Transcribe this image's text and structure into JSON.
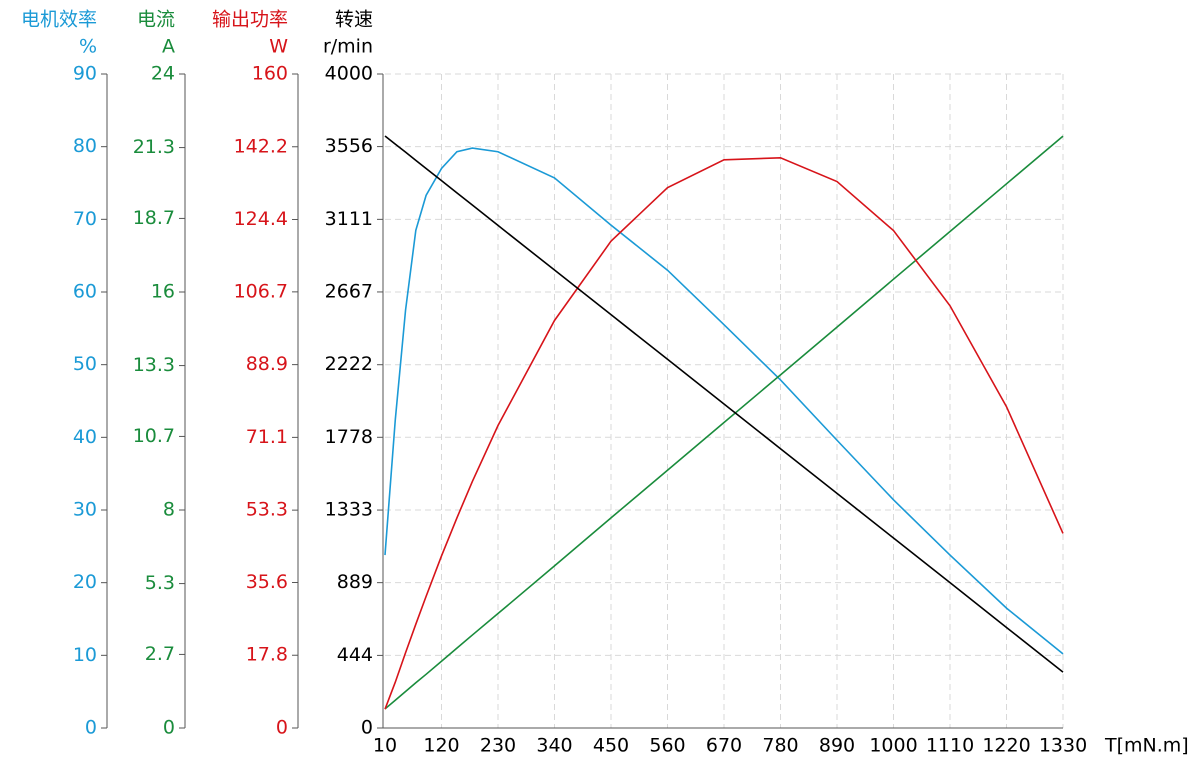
{
  "chart_data": {
    "type": "line",
    "x_label": "T[mN.m]",
    "x": [
      10,
      30,
      50,
      70,
      90,
      120,
      150,
      180,
      230,
      340,
      450,
      560,
      670,
      780,
      890,
      1000,
      1110,
      1220,
      1330
    ],
    "xlim": [
      10,
      1330
    ],
    "xticks": [
      10,
      120,
      230,
      340,
      450,
      560,
      670,
      780,
      890,
      1000,
      1110,
      1220,
      1330
    ],
    "grid": true,
    "series": [
      {
        "name": "电机效率",
        "unit": "%",
        "color": "#1b9ad6",
        "ylim": [
          0,
          90
        ],
        "yticks": [
          0,
          10,
          20,
          30,
          40,
          50,
          60,
          70,
          80,
          90
        ],
        "values": [
          23.8,
          42.4,
          57.5,
          68.5,
          73.3,
          77,
          79.3,
          79.8,
          79.3,
          75.7,
          69.2,
          63.0,
          55.5,
          47.9,
          39.6,
          31.4,
          23.8,
          16.5,
          10.2
        ]
      },
      {
        "name": "电流",
        "unit": "A",
        "color": "#1a8c3c",
        "ylim": [
          0,
          24
        ],
        "yticks": [
          0,
          2.7,
          5.3,
          8,
          10.7,
          13.3,
          16,
          18.7,
          21.3,
          24
        ],
        "values": [
          0.7,
          1.02,
          1.34,
          1.66,
          1.97,
          2.45,
          2.93,
          3.41,
          4.2,
          5.95,
          7.71,
          9.46,
          11.21,
          12.96,
          14.71,
          16.47,
          18.22,
          19.97,
          21.72
        ]
      },
      {
        "name": "输出功率",
        "unit": "W",
        "color": "#d7141a",
        "ylim": [
          0,
          160
        ],
        "yticks": [
          0,
          17.8,
          35.6,
          53.3,
          71.1,
          88.9,
          106.7,
          124.4,
          142.2,
          160
        ],
        "values": [
          4.6,
          11.2,
          18.4,
          25.4,
          32.2,
          42.1,
          51.4,
          60.3,
          74.0,
          99.7,
          119.1,
          132.2,
          139.0,
          139.5,
          133.7,
          121.7,
          103.3,
          78.6,
          47.6
        ]
      },
      {
        "name": "转速",
        "unit": "r/min",
        "color": "#000000",
        "ylim": [
          0,
          4000
        ],
        "yticks": [
          0,
          444,
          889,
          1333,
          1778,
          2222,
          2667,
          3111,
          3556,
          4000
        ],
        "values": [
          3621,
          3571,
          3522,
          3472,
          3422,
          3348,
          3273,
          3199,
          3074,
          2801,
          2528,
          2255,
          1982,
          1708,
          1435,
          1162,
          889,
          615,
          342
        ]
      }
    ]
  }
}
